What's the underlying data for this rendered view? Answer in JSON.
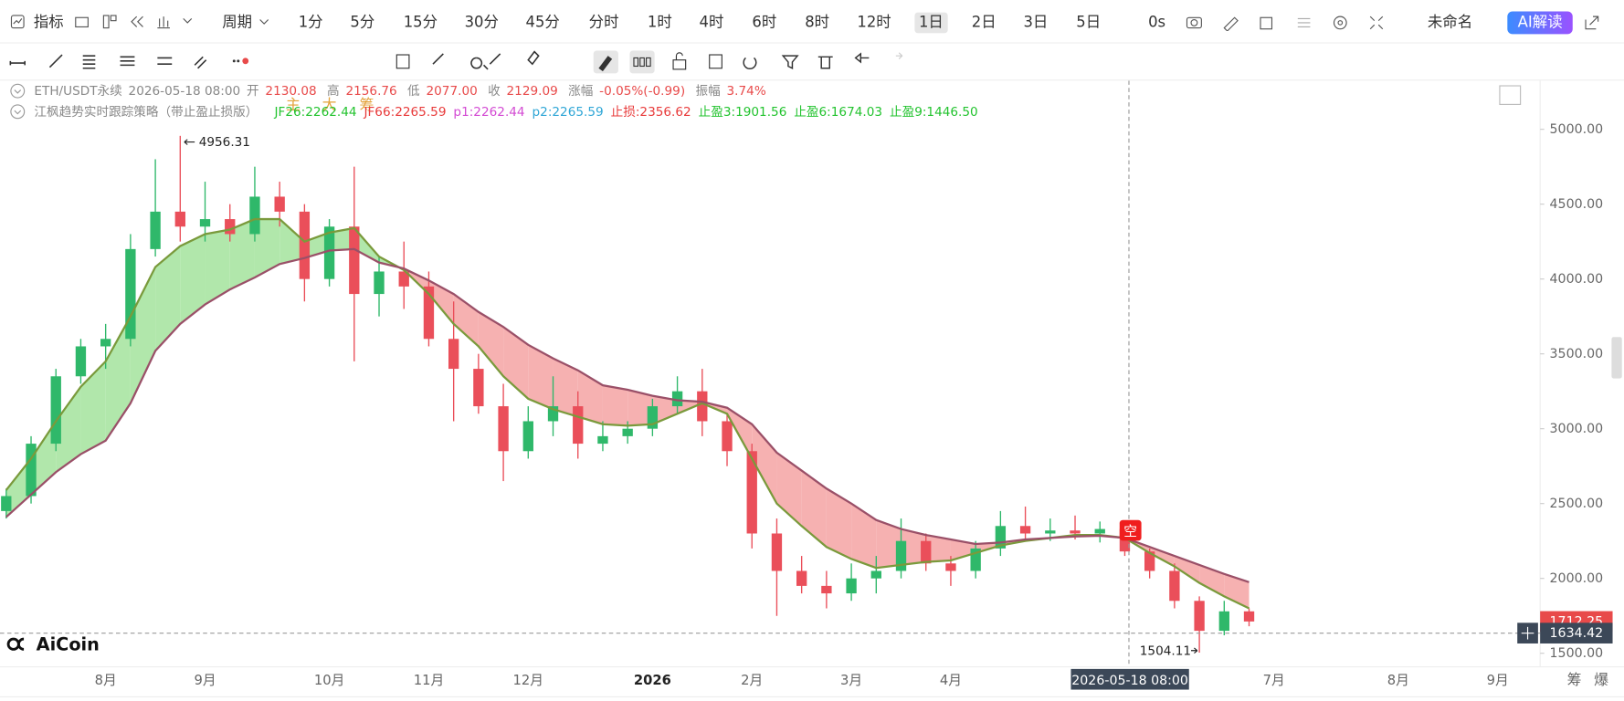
{
  "toolbar": {
    "indicator": "指标",
    "period": "周期",
    "periods": [
      "1分",
      "5分",
      "15分",
      "30分",
      "45分",
      "分时",
      "1时",
      "4时",
      "6时",
      "8时",
      "12时",
      "1日",
      "2日",
      "3日",
      "5日"
    ],
    "selected_period": 11,
    "countdown": "0s",
    "layout_name": "未命名",
    "ai_button": "AI解读"
  },
  "drawing_toolbar": {
    "main": "主",
    "big": "大",
    "chips": "筹"
  },
  "info": {
    "symbol": "ETH/USDT永续",
    "time": "2026-05-18 08:00",
    "ohlc": [
      {
        "label": "开",
        "value": "2130.08"
      },
      {
        "label": "高",
        "value": "2156.76"
      },
      {
        "label": "低",
        "value": "2077.00"
      },
      {
        "label": "收",
        "value": "2129.09"
      },
      {
        "label": "涨幅",
        "value": "-0.05%(-0.99)"
      },
      {
        "label": "振幅",
        "value": "3.74%"
      }
    ],
    "strategy": "江枫趋势实时跟踪策略（带止盈止损版）",
    "strategy_values": [
      {
        "text": "JF26:2262.44",
        "color": "#22c32e"
      },
      {
        "text": "JF66:2265.59",
        "color": "#e83a3a"
      },
      {
        "text": "p1:2262.44",
        "color": "#d34ad3"
      },
      {
        "text": "p2:2265.59",
        "color": "#2fa6d6"
      },
      {
        "text": "止损:2356.62",
        "color": "#e83a3a"
      },
      {
        "text": "止盈3:1901.56",
        "color": "#22c32e"
      },
      {
        "text": "止盈6:1674.03",
        "color": "#22c32e"
      },
      {
        "text": "止盈9:1446.50",
        "color": "#22c32e"
      }
    ]
  },
  "watermark": "AiCoin",
  "footer_buttons": [
    "筹",
    "爆"
  ],
  "chart_data": {
    "type": "candlestick",
    "categories": [
      null,
      null,
      null,
      null,
      "8月",
      null,
      null,
      null,
      "9月",
      null,
      null,
      null,
      null,
      "10月",
      null,
      null,
      null,
      "11月",
      null,
      null,
      null,
      "12月",
      null,
      null,
      null,
      null,
      "2026",
      null,
      null,
      null,
      "2月",
      null,
      null,
      null,
      "3月",
      null,
      null,
      null,
      "4月",
      null,
      null,
      null,
      null,
      null,
      null,
      null,
      null,
      null,
      null,
      null,
      null,
      "7月",
      null,
      null,
      null,
      null,
      "8月",
      null,
      null,
      null,
      "9月"
    ],
    "open": [
      2450,
      2550,
      2900,
      3350,
      3550,
      3600,
      4200,
      4450,
      4350,
      4400,
      4300,
      4550,
      4450,
      4000,
      4350,
      3900,
      4050,
      3950,
      3600,
      3400,
      3150,
      2850,
      3050,
      3150,
      2900,
      2950,
      3000,
      3150,
      3250,
      3050,
      2850,
      2300,
      2050,
      1950,
      1900,
      2000,
      2050,
      2250,
      2100,
      2050,
      2200,
      2350,
      2300,
      2320,
      2300,
      2330,
      2180,
      2050,
      1850,
      1650,
      1780,
      null,
      null,
      null,
      null,
      null,
      null,
      null,
      null,
      null,
      null
    ],
    "high": [
      2600,
      2950,
      3400,
      3600,
      3700,
      4300,
      4800,
      4956.31,
      4650,
      4500,
      4750,
      4650,
      4500,
      4400,
      4750,
      4150,
      4250,
      4050,
      3850,
      3500,
      3300,
      3150,
      3350,
      3250,
      3050,
      3050,
      3200,
      3350,
      3400,
      3100,
      2900,
      2400,
      2150,
      2050,
      2100,
      2150,
      2400,
      2300,
      2150,
      2250,
      2450,
      2480,
      2400,
      2420,
      2380,
      2370,
      2200,
      2100,
      1880,
      1850,
      1800,
      null,
      null,
      null,
      null,
      null,
      null,
      null,
      null,
      null,
      null
    ],
    "low": [
      2400,
      2500,
      2850,
      3300,
      3400,
      3550,
      4150,
      4250,
      4250,
      4250,
      4250,
      4350,
      3850,
      3950,
      3450,
      3750,
      3800,
      3550,
      3050,
      3100,
      2650,
      2800,
      2950,
      2800,
      2850,
      2900,
      2950,
      3100,
      2950,
      2750,
      2200,
      1750,
      1900,
      1800,
      1850,
      1900,
      2000,
      2050,
      1950,
      2000,
      2150,
      2250,
      2250,
      2260,
      2240,
      2150,
      2000,
      1800,
      1504.11,
      1620,
      1680,
      null,
      null,
      null,
      null,
      null,
      null,
      null,
      null,
      null,
      null
    ],
    "close": [
      2550,
      2900,
      3350,
      3550,
      3600,
      4200,
      4450,
      4350,
      4400,
      4300,
      4550,
      4450,
      4000,
      4350,
      3900,
      4050,
      3950,
      3600,
      3400,
      3150,
      2850,
      3050,
      3150,
      2900,
      2950,
      3000,
      3150,
      3250,
      3050,
      2850,
      2300,
      2050,
      1950,
      1900,
      2000,
      2050,
      2250,
      2100,
      2050,
      2200,
      2350,
      2300,
      2320,
      2300,
      2330,
      2180,
      2050,
      1850,
      1650,
      1780,
      1712.25,
      null,
      null,
      null,
      null,
      null,
      null,
      null,
      null,
      null,
      null
    ],
    "up_color": "#2fb86a",
    "down_color": "#ea4f5a",
    "lines": [
      {
        "name": "JF26",
        "color": "#7a9a3c",
        "values": [
          2590,
          2800,
          3050,
          3280,
          3450,
          3750,
          4080,
          4220,
          4300,
          4330,
          4400,
          4400,
          4250,
          4310,
          4340,
          4150,
          4060,
          3900,
          3700,
          3550,
          3350,
          3200,
          3130,
          3080,
          3030,
          3020,
          3030,
          3100,
          3170,
          3100,
          2800,
          2500,
          2350,
          2210,
          2130,
          2070,
          2090,
          2110,
          2120,
          2170,
          2220,
          2250,
          2270,
          2290,
          2290,
          2270,
          2170,
          2080,
          1970,
          1880,
          1800,
          null,
          null,
          null,
          null,
          null,
          null,
          null,
          null,
          null,
          null
        ]
      },
      {
        "name": "JF66",
        "color": "#9a5068",
        "values": [
          2410,
          2560,
          2710,
          2830,
          2920,
          3170,
          3520,
          3700,
          3830,
          3930,
          4010,
          4100,
          4140,
          4190,
          4200,
          4110,
          4070,
          3990,
          3900,
          3780,
          3680,
          3560,
          3470,
          3390,
          3290,
          3260,
          3220,
          3190,
          3180,
          3140,
          3030,
          2840,
          2720,
          2600,
          2500,
          2390,
          2330,
          2290,
          2260,
          2230,
          2240,
          2260,
          2270,
          2280,
          2285,
          2270,
          2210,
          2150,
          2090,
          2030,
          1975,
          null,
          null,
          null,
          null,
          null,
          null,
          null,
          null,
          null,
          null
        ]
      }
    ],
    "up_fill": "#a8e4a2",
    "down_fill": "#f5a8a8",
    "ylim": [
      1409,
      5325
    ],
    "yticks": [
      {
        "value": 1500,
        "label": "1500.00"
      },
      {
        "value": 2000,
        "label": "2000.00"
      },
      {
        "value": 2500,
        "label": "2500.00"
      },
      {
        "value": 3000,
        "label": "3000.00"
      },
      {
        "value": 3500,
        "label": "3500.00"
      },
      {
        "value": 4000,
        "label": "4000.00"
      },
      {
        "value": 4500,
        "label": "4500.00"
      },
      {
        "value": 5000,
        "label": "5000.00"
      }
    ],
    "crosshair": {
      "time": "2026-05-18 08:00",
      "price": 1634.42
    },
    "signal": "空"
  }
}
